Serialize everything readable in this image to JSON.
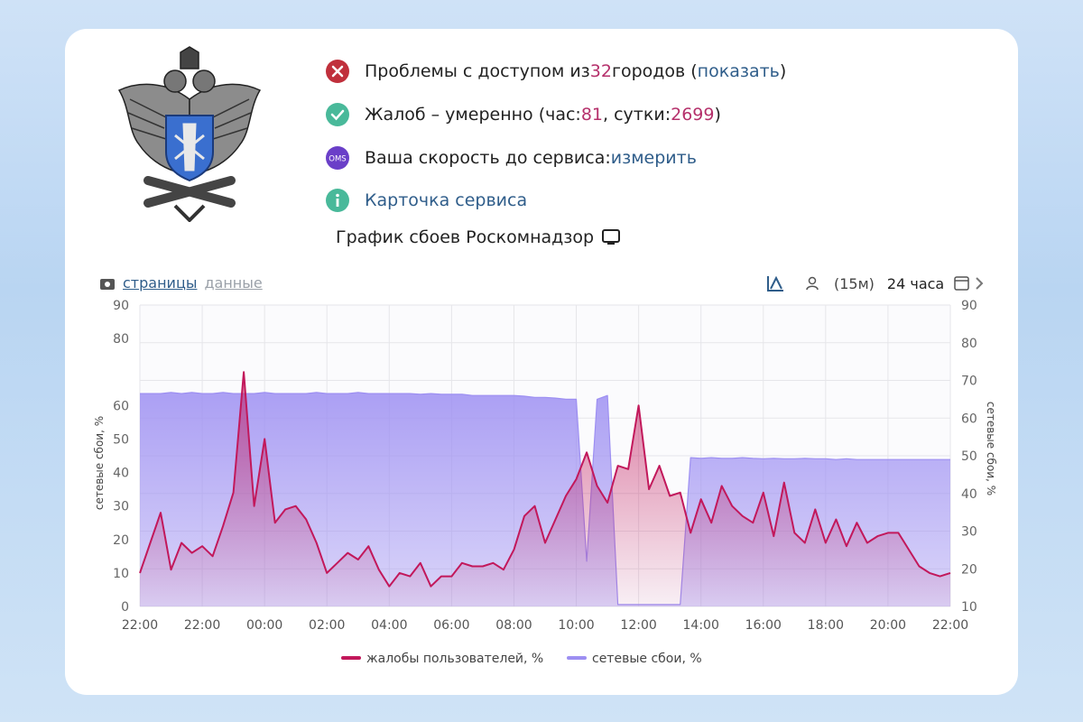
{
  "status": {
    "access": {
      "text": "Проблемы с доступом из",
      "count": 32,
      "unit": "городов (",
      "link": "показать",
      "close": ")"
    },
    "complaints": {
      "text": "Жалоб – умеренно (час:",
      "hour": 81,
      "sep": ", сутки:",
      "day": 2699,
      "close": ")"
    },
    "speed": {
      "badge": "OMS",
      "text": "Ваша скорость до сервиса:",
      "link": "измерить"
    },
    "card": {
      "link": "Карточка сервиса"
    }
  },
  "chart_heading": "График сбоев Роскомнадзор",
  "toolbar": {
    "tabs": [
      "страницы",
      "данные"
    ],
    "interval": "(15м)",
    "period": "24 часа"
  },
  "chart_data": {
    "type": "area",
    "ylabel": "сетевые сбои, %",
    "y2label": "сетевые сбои, %",
    "ylim": [
      0,
      90
    ],
    "yticks": [
      0,
      10,
      20,
      30,
      40,
      50,
      60,
      80,
      90
    ],
    "y2lim": [
      10,
      90
    ],
    "y2ticks": [
      10,
      20,
      30,
      40,
      50,
      60,
      70,
      80,
      90
    ],
    "grid": true,
    "categories": [
      "22:00",
      null,
      null,
      null,
      null,
      null,
      "22:00",
      null,
      null,
      null,
      null,
      null,
      "00:00",
      null,
      null,
      null,
      null,
      null,
      "02:00",
      null,
      null,
      null,
      null,
      null,
      "04:00",
      null,
      null,
      null,
      null,
      null,
      "06:00",
      null,
      null,
      null,
      null,
      null,
      "08:00",
      null,
      null,
      null,
      null,
      null,
      "10:00",
      null,
      null,
      null,
      null,
      null,
      "12:00",
      null,
      null,
      null,
      null,
      null,
      "14:00",
      null,
      null,
      null,
      null,
      null,
      "16:00",
      null,
      null,
      null,
      null,
      null,
      "18:00",
      null,
      null,
      null,
      null,
      null,
      "20:00",
      null,
      null,
      null,
      null,
      null,
      "22:00"
    ],
    "series": [
      {
        "name": "сетевые сбои, %",
        "color": "#9d8ff2",
        "axis": "y2",
        "values": [
          66.5,
          66.5,
          66.5,
          66.8,
          66.5,
          66.8,
          66.5,
          66.5,
          66.8,
          66.5,
          66.5,
          66.5,
          66.8,
          66.5,
          66.5,
          66.5,
          66.5,
          66.8,
          66.5,
          66.5,
          66.5,
          66.8,
          66.5,
          66.5,
          66.5,
          66.5,
          66.5,
          66.3,
          66.5,
          66.3,
          66.3,
          66.3,
          66.0,
          66.0,
          66.0,
          66.0,
          66.0,
          65.8,
          65.5,
          65.5,
          65.3,
          65.0,
          65.0,
          22,
          65,
          66,
          10.5,
          10.5,
          10.5,
          10.5,
          10.5,
          10.5,
          10.5,
          49.5,
          49.3,
          49.5,
          49.3,
          49.3,
          49.5,
          49.3,
          49.2,
          49.3,
          49.2,
          49.2,
          49.3,
          49.2,
          49.2,
          49.0,
          49.2,
          49.0,
          49.0,
          49.0,
          49.0,
          49.0,
          49.0,
          49.0,
          49.0,
          49.0,
          49.0
        ]
      },
      {
        "name": "жалобы пользователей, %",
        "color": "#c2185b",
        "axis": "y",
        "values": [
          10,
          19,
          28,
          11,
          19,
          16,
          18,
          15,
          24,
          34,
          70,
          30,
          50,
          25,
          29,
          30,
          26,
          19,
          10,
          13,
          16,
          14,
          18,
          11,
          6,
          10,
          9,
          13,
          6,
          9,
          9,
          13,
          12,
          12,
          13,
          11,
          17,
          27,
          30,
          19,
          26,
          33,
          38,
          46,
          36,
          31,
          42,
          41,
          60,
          35,
          42,
          33,
          34,
          22,
          32,
          25,
          36,
          30,
          27,
          25,
          34,
          21,
          37,
          22,
          19,
          29,
          19,
          26,
          18,
          25,
          19,
          21,
          22,
          22,
          17,
          12,
          10,
          9,
          10
        ]
      }
    ]
  }
}
